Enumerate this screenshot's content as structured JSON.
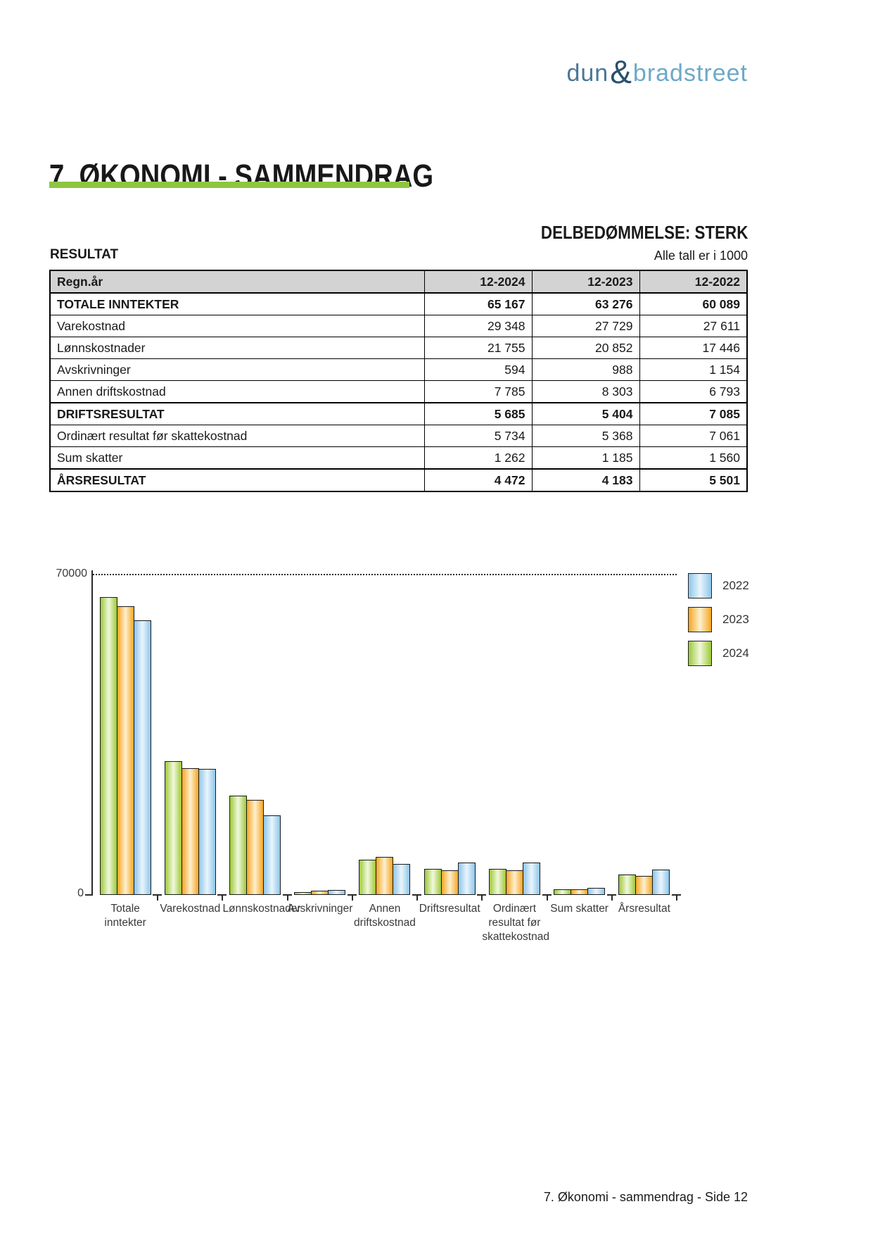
{
  "logo": {
    "part1": "dun",
    "amp": "&",
    "part2": "bradstreet"
  },
  "page": {
    "title": "7. ØKONOMI - SAMMENDRAG",
    "assessment": "DELBEDØMMELSE: STERK",
    "section_label": "RESULTAT",
    "units_note": "Alle tall er i 1000",
    "footer": "7. Økonomi - sammendrag - Side 12"
  },
  "colors": {
    "title_rule_green": "#8dc63f",
    "table_header_bg": "#d3d3d3",
    "logo_dun": "#4a7898",
    "logo_amp": "#28516f",
    "logo_bradstreet": "#6ca9c6",
    "series_2024_edge": "#9dc939",
    "series_2023_edge": "#f6a623",
    "series_2022_edge": "#8ec6e9"
  },
  "table": {
    "header": [
      "Regn.år",
      "12-2024",
      "12-2023",
      "12-2022"
    ],
    "rows": [
      {
        "label": "TOTALE INNTEKTER",
        "v2024": "65 167",
        "v2023": "63 276",
        "v2022": "60 089"
      },
      {
        "label": "Varekostnad",
        "v2024": "29 348",
        "v2023": "27 729",
        "v2022": "27 611"
      },
      {
        "label": "Lønnskostnader",
        "v2024": "21 755",
        "v2023": "20 852",
        "v2022": "17 446"
      },
      {
        "label": "Avskrivninger",
        "v2024": "594",
        "v2023": "988",
        "v2022": "1 154"
      },
      {
        "label": "Annen driftskostnad",
        "v2024": "7 785",
        "v2023": "8 303",
        "v2022": "6 793"
      },
      {
        "label": "DRIFTSRESULTAT",
        "v2024": "5 685",
        "v2023": "5 404",
        "v2022": "7 085"
      },
      {
        "label": "Ordinært resultat før skattekostnad",
        "v2024": "5 734",
        "v2023": "5 368",
        "v2022": "7 061"
      },
      {
        "label": "Sum skatter",
        "v2024": "1 262",
        "v2023": "1 185",
        "v2022": "1 560"
      },
      {
        "label": "ÅRSRESULTAT",
        "v2024": "4 472",
        "v2023": "4 183",
        "v2022": "5 501"
      }
    ]
  },
  "chart_data": {
    "type": "bar",
    "title": "",
    "xlabel": "",
    "ylabel": "",
    "ylim": [
      0,
      70000
    ],
    "ytick_labels": [
      "0",
      "70000"
    ],
    "grid": "dotted top gridline at 70000 only",
    "legend_position": "top-right",
    "legend": [
      "2022",
      "2023",
      "2024"
    ],
    "categories": [
      "Totale inntekter",
      "Varekostnad",
      "Lønnskostnader",
      "Avskrivninger",
      "Annen driftskostnad",
      "Driftsresultat",
      "Ordinært resultat før skattekostnad",
      "Sum skatter",
      "Årsresultat"
    ],
    "category_label_lines": [
      [
        "Totale",
        "inntekter"
      ],
      [
        "Varekostnad"
      ],
      [
        "Lønnskostnader"
      ],
      [
        "Avskrivninger"
      ],
      [
        "Annen",
        "driftskostnad"
      ],
      [
        "Driftsresultat"
      ],
      [
        "Ordinært",
        "resultat før",
        "skattekostnad"
      ],
      [
        "Sum skatter"
      ],
      [
        "Årsresultat"
      ]
    ],
    "bar_group_order": [
      "2024",
      "2023",
      "2022"
    ],
    "series": [
      {
        "name": "2024",
        "edge_color": "#9dc939",
        "center_color": "#f1f8dd",
        "values": [
          65167,
          29348,
          21755,
          594,
          7785,
          5685,
          5734,
          1262,
          4472
        ]
      },
      {
        "name": "2023",
        "edge_color": "#f6a623",
        "center_color": "#fdf0ce",
        "values": [
          63276,
          27729,
          20852,
          988,
          8303,
          5404,
          5368,
          1185,
          4183
        ]
      },
      {
        "name": "2022",
        "edge_color": "#8ec6e9",
        "center_color": "#eaf5fd",
        "values": [
          60089,
          27611,
          17446,
          1154,
          6793,
          7085,
          7061,
          1560,
          5501
        ]
      }
    ]
  }
}
